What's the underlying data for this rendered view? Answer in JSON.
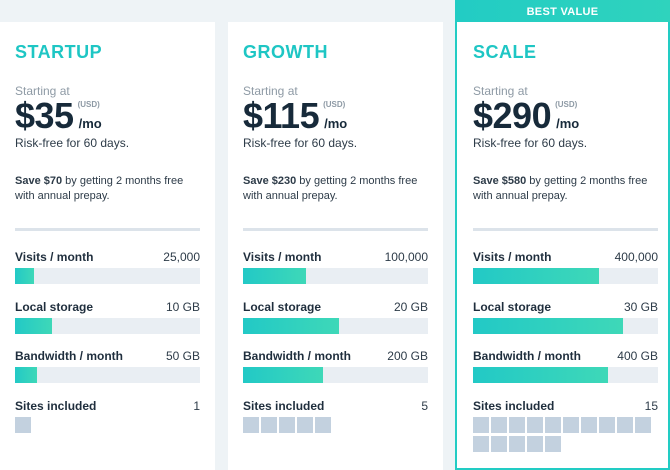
{
  "ribbon": "BEST VALUE",
  "labels": {
    "starting": "Starting at",
    "usd": "(USD)",
    "per_mo": "/mo",
    "risk_free": "Risk-free for 60 days.",
    "save_prefix": "Save",
    "save_suffix": " by getting 2 months free with annual prepay.",
    "visits": "Visits / month",
    "storage": "Local storage",
    "bandwidth": "Bandwidth / month",
    "sites": "Sites included"
  },
  "plans": [
    {
      "name": "STARTUP",
      "price": "$35",
      "save_amount": "$70",
      "visits": "25,000",
      "visits_frac": 0.1,
      "storage": "10 GB",
      "storage_frac": 0.2,
      "bandwidth": "50 GB",
      "bandwidth_frac": 0.12,
      "sites": "1",
      "sites_count": 1
    },
    {
      "name": "GROWTH",
      "price": "$115",
      "save_amount": "$230",
      "visits": "100,000",
      "visits_frac": 0.34,
      "storage": "20 GB",
      "storage_frac": 0.52,
      "bandwidth": "200 GB",
      "bandwidth_frac": 0.43,
      "sites": "5",
      "sites_count": 5
    },
    {
      "name": "SCALE",
      "price": "$290",
      "save_amount": "$580",
      "visits": "400,000",
      "visits_frac": 0.68,
      "storage": "30 GB",
      "storage_frac": 0.81,
      "bandwidth": "400 GB",
      "bandwidth_frac": 0.73,
      "sites": "15",
      "sites_count": 15
    }
  ]
}
